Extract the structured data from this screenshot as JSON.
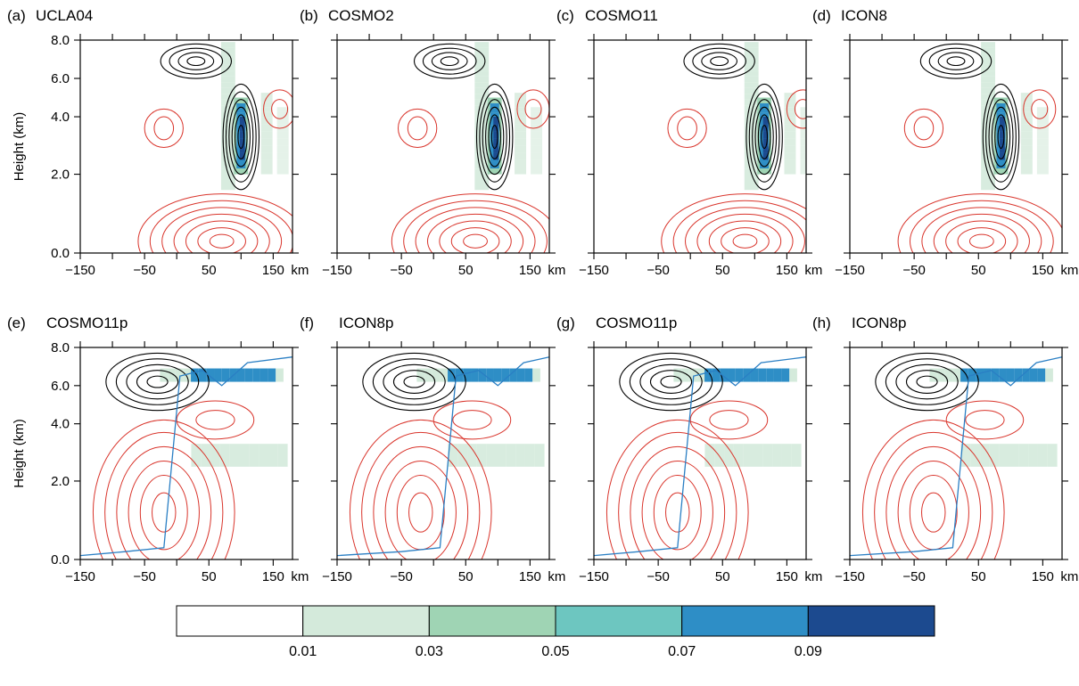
{
  "chart_data": {
    "type": "heatmap",
    "layout": "2 rows x 4 panels",
    "xlim": [
      -150,
      180
    ],
    "ylim": [
      0.0,
      8.0
    ],
    "y_scale": "nonlinear (height, expanded below 2 km)",
    "x_tick_labels": [
      "−150",
      "−50",
      "50",
      "150"
    ],
    "x_unit": "km",
    "y_tick_labels": [
      "0.0",
      "2.0",
      "4.0",
      "6.0",
      "8.0"
    ],
    "ylabel": "Height (km)",
    "panels": [
      {
        "label": "(a)",
        "model": "UCLA04",
        "jet_axis": 100,
        "has_blue_line": false
      },
      {
        "label": "(b)",
        "model": "COSMO2",
        "jet_axis": 95,
        "has_blue_line": false
      },
      {
        "label": "(c)",
        "model": "COSMO11",
        "jet_axis": 115,
        "has_blue_line": false
      },
      {
        "label": "(d)",
        "model": "ICON8",
        "jet_axis": 85,
        "has_blue_line": false
      },
      {
        "label": "(e)",
        "model": "COSMO11p",
        "has_blue_line": true
      },
      {
        "label": "(f)",
        "model": "ICON8p",
        "has_blue_line": true
      },
      {
        "label": "(g)",
        "model": "COSMO11p",
        "has_blue_line": true
      },
      {
        "label": "(h)",
        "model": "ICON8p",
        "has_blue_line": true
      }
    ],
    "colorbar": {
      "bins": [
        "#ffffff",
        "#d4eadb",
        "#9fd4b4",
        "#6dc6c0",
        "#2e8ec6",
        "#1c4a8f"
      ],
      "tick_labels": [
        "0.01",
        "0.03",
        "0.05",
        "0.07",
        "0.09"
      ]
    },
    "contour_colors": {
      "positive": "#000000",
      "negative": "#d9342b",
      "line": "#2a7fc4"
    }
  }
}
